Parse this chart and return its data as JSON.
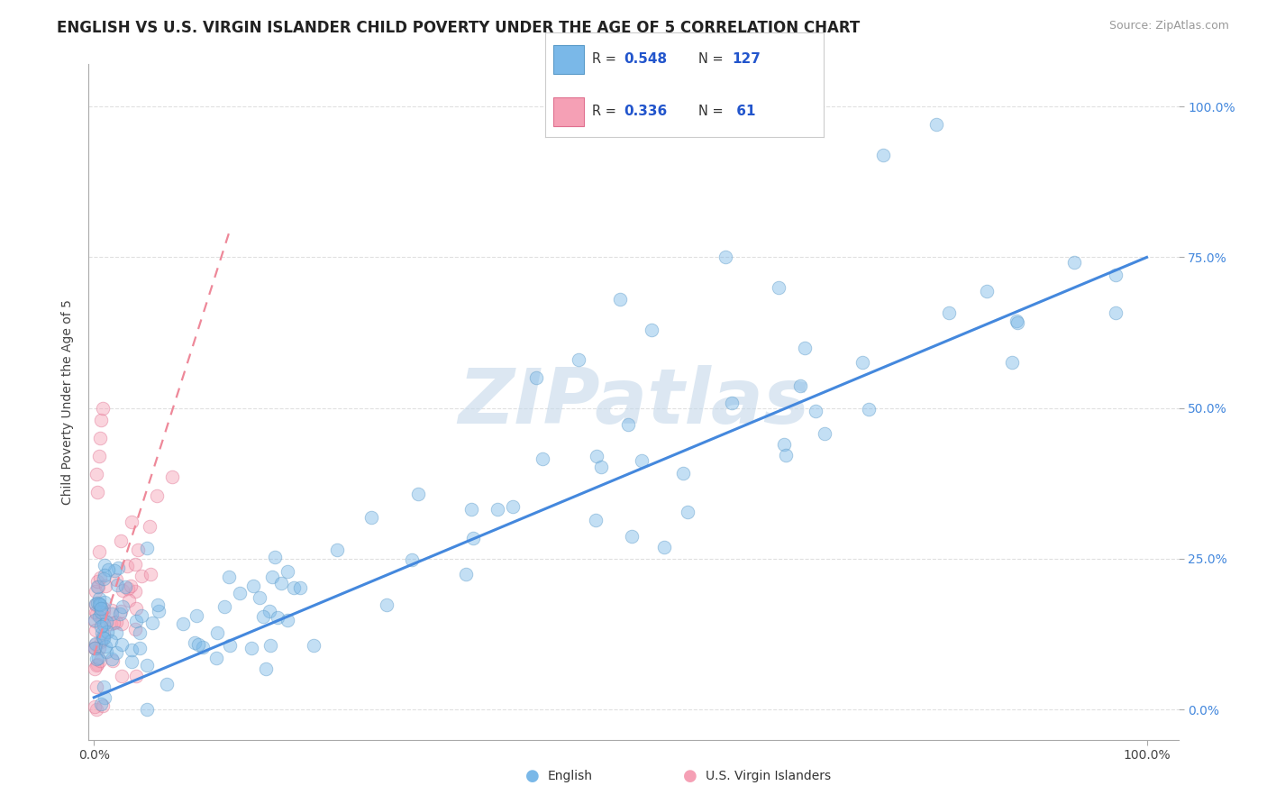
{
  "title": "ENGLISH VS U.S. VIRGIN ISLANDER CHILD POVERTY UNDER THE AGE OF 5 CORRELATION CHART",
  "source": "Source: ZipAtlas.com",
  "ylabel": "Child Poverty Under the Age of 5",
  "ytick_labels": [
    "0.0%",
    "25.0%",
    "50.0%",
    "75.0%",
    "100.0%"
  ],
  "ytick_values": [
    0.0,
    0.25,
    0.5,
    0.75,
    1.0
  ],
  "xtick_labels": [
    "0.0%",
    "100.0%"
  ],
  "xtick_values": [
    0.0,
    1.0
  ],
  "watermark_text": "ZIPatlas",
  "watermark_color": "#c5d8ea",
  "english_color": "#7ab8e8",
  "english_edge_color": "#5a9ac8",
  "virgin_color": "#f5a0b5",
  "virgin_edge_color": "#e07090",
  "trend_color_english": "#4488dd",
  "trend_color_virgin": "#ee8899",
  "grid_color": "#dddddd",
  "bg_color": "#ffffff",
  "scatter_size": 110,
  "scatter_alpha": 0.45,
  "title_fontsize": 12,
  "axis_fontsize": 10,
  "tick_fontsize": 10,
  "R_color": "#2255cc",
  "N_color": "#2255cc",
  "legend_R1": "0.548",
  "legend_N1": "127",
  "legend_R2": "0.336",
  "legend_N2": " 61",
  "legend_label1": "English",
  "legend_label2": "U.S. Virgin Islanders",
  "eng_trend_x0": 0.0,
  "eng_trend_y0": 0.02,
  "eng_trend_x1": 1.0,
  "eng_trend_y1": 0.75,
  "vir_trend_x0": 0.0,
  "vir_trend_y0": 0.09,
  "vir_trend_x1": 0.13,
  "vir_trend_y1": 0.8
}
